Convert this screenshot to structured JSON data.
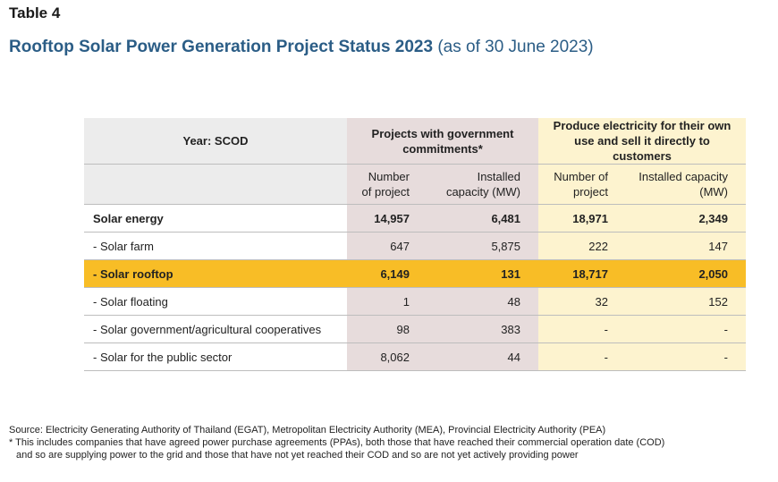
{
  "table_label": "Table 4",
  "title": {
    "main": "Rooftop Solar Power Generation Project Status 2023",
    "sub": "(as of 30 June 2023)"
  },
  "header": {
    "row_header": "Year: SCOD",
    "group_gov": "Projects with government commitments*",
    "group_own": "Produce electricity for their own use and sell it directly to customers",
    "sub_number": "Number of project",
    "sub_capacity": "Installed capacity (MW)"
  },
  "rows": [
    {
      "label": "Solar energy",
      "gov_projects": "14,957",
      "gov_mw": "6,481",
      "own_projects": "18,971",
      "own_mw": "2,349"
    },
    {
      "label": "- Solar farm",
      "gov_projects": "647",
      "gov_mw": "5,875",
      "own_projects": "222",
      "own_mw": "147"
    },
    {
      "label": "- Solar rooftop",
      "gov_projects": "6,149",
      "gov_mw": "131",
      "own_projects": "18,717",
      "own_mw": "2,050"
    },
    {
      "label": "- Solar floating",
      "gov_projects": "1",
      "gov_mw": "48",
      "own_projects": "32",
      "own_mw": "152"
    },
    {
      "label": "- Solar government/agricultural cooperatives",
      "gov_projects": "98",
      "gov_mw": "383",
      "own_projects": "-",
      "own_mw": "-"
    },
    {
      "label": "- Solar for the public sector",
      "gov_projects": "8,062",
      "gov_mw": "44",
      "own_projects": "-",
      "own_mw": "-"
    }
  ],
  "notes": {
    "source": "Source: Electricity Generating Authority of Thailand (EGAT), Metropolitan Electricity Authority (MEA), Provincial Electricity Authority (PEA)",
    "footnote_1": "* This includes companies that have agreed power purchase agreements (PPAs), both those that have reached their commercial operation date (COD)",
    "footnote_2": "and so are supplying power to the grid and those that have not yet reached their COD and so are not yet actively providing power"
  },
  "colors": {
    "title": "#2b5d86",
    "header_gray": "#ececec",
    "gov_column": "#e7dcdc",
    "own_column": "#fdf3cf",
    "highlight_row": "#f8bd26"
  }
}
